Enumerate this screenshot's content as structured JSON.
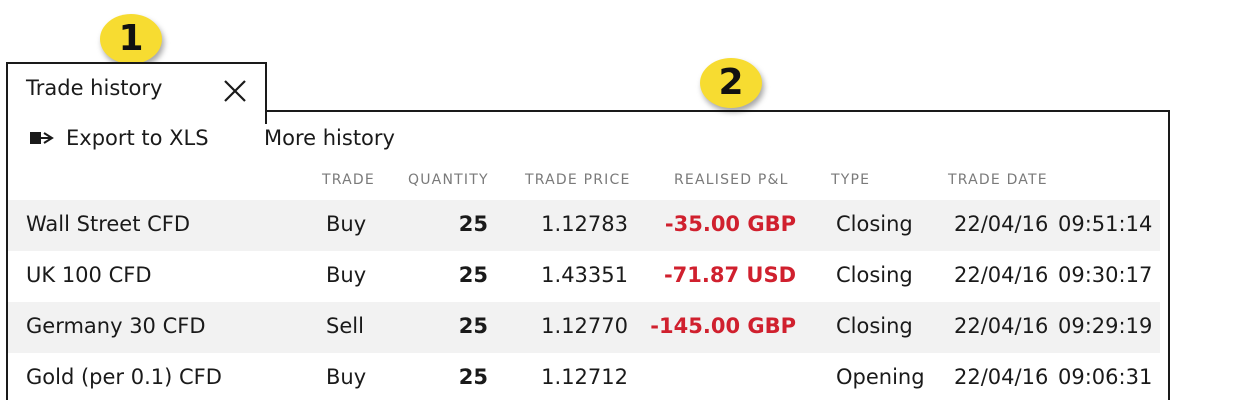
{
  "callouts": {
    "first": "1",
    "second": "2"
  },
  "tab": {
    "title": "Trade history",
    "close_icon": "close-icon"
  },
  "toolbar": {
    "export_label": "Export to XLS",
    "export_icon": "export-arrow-icon",
    "more_label": "More history"
  },
  "table": {
    "headers": [
      "TRADE",
      "QUANTITY",
      "TRADE PRICE",
      "REALISED P&L",
      "TYPE",
      "TRADE DATE"
    ],
    "rows": [
      {
        "instrument": "Wall Street CFD",
        "trade": "Buy",
        "quantity": "25",
        "price": "1.12783",
        "pl": "-35.00 GBP",
        "type": "Closing",
        "date": "22/04/16",
        "time": "09:51:14"
      },
      {
        "instrument": "UK 100 CFD",
        "trade": "Buy",
        "quantity": "25",
        "price": "1.43351",
        "pl": "-71.87 USD",
        "type": "Closing",
        "date": "22/04/16",
        "time": "09:30:17"
      },
      {
        "instrument": "Germany 30 CFD",
        "trade": "Sell",
        "quantity": "25",
        "price": "1.12770",
        "pl": "-145.00 GBP",
        "type": "Closing",
        "date": "22/04/16",
        "time": "09:29:19"
      },
      {
        "instrument": "Gold (per 0.1) CFD",
        "trade": "Buy",
        "quantity": "25",
        "price": "1.12712",
        "pl": "",
        "type": "Opening",
        "date": "22/04/16",
        "time": "09:06:31"
      }
    ]
  },
  "colors": {
    "loss": "#d0202e",
    "badge": "#f7dc31",
    "row_shade": "#f2f2f2"
  }
}
